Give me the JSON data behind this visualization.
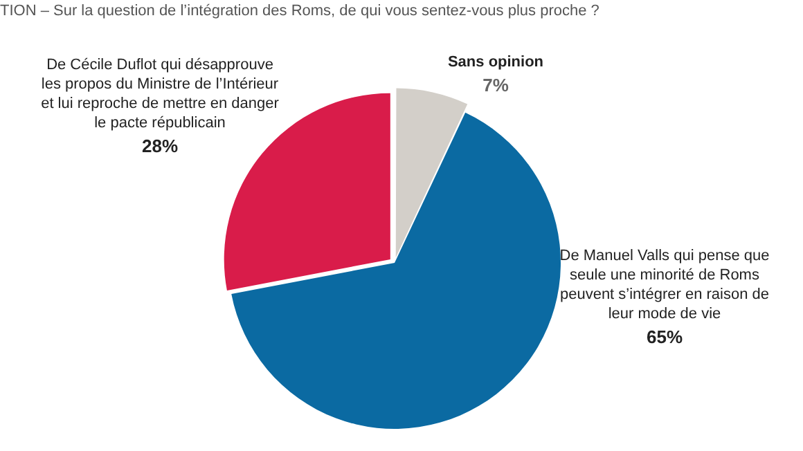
{
  "chart_data": {
    "type": "pie",
    "title": "TION – Sur la question de l’intégration des Roms, de qui vous sentez-vous plus proche ?",
    "categories": [
      "Sans opinion",
      "De Manuel Valls qui pense que seule une minorité de Roms peuvent s’intégrer en raison de leur mode de vie",
      "De Cécile Duflot qui désapprouve les propos du Ministre de l’Intérieur et lui reproche de mettre en danger le pacte républicain"
    ],
    "values": [
      7,
      65,
      28
    ],
    "colors": [
      "#d3cfc9",
      "#0b6aa2",
      "#d91c4a"
    ],
    "value_labels": [
      "7%",
      "65%",
      "28%"
    ],
    "legend": false
  }
}
